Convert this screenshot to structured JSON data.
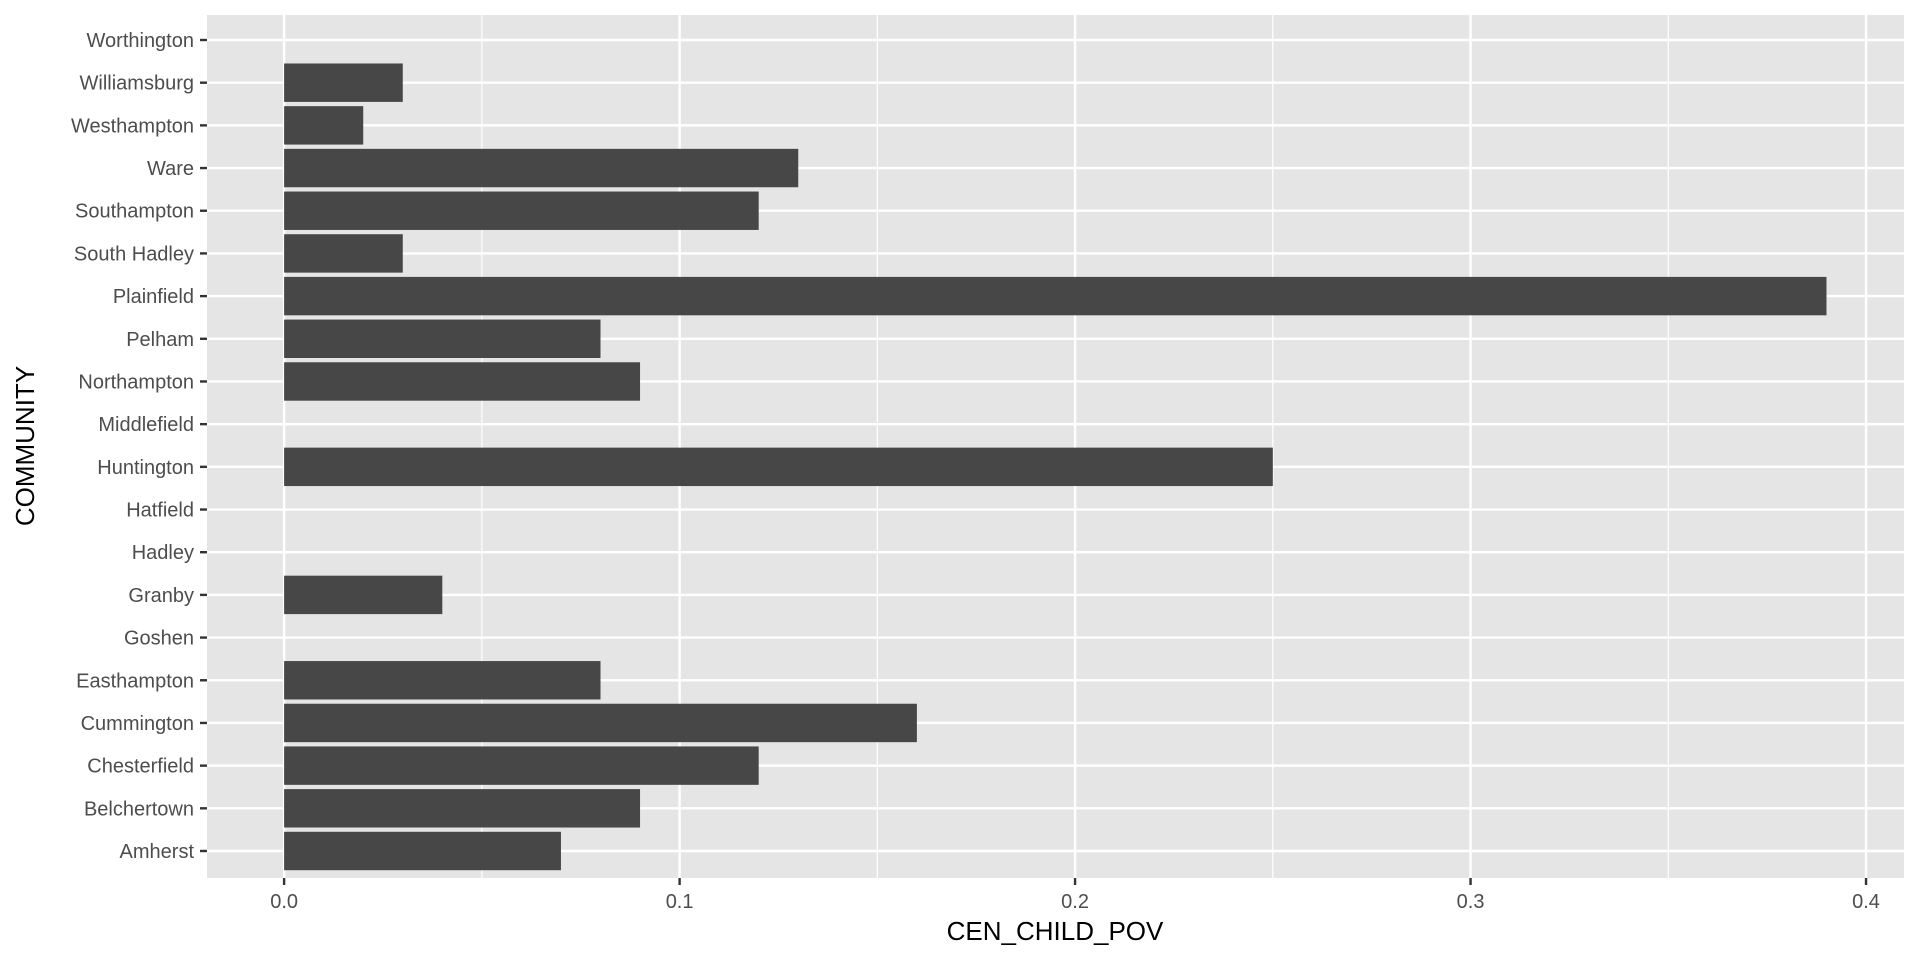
{
  "chart_data": {
    "type": "bar",
    "orientation": "horizontal",
    "xlabel": "CEN_CHILD_POV",
    "ylabel": "COMMUNITY",
    "categories": [
      "Amherst",
      "Belchertown",
      "Chesterfield",
      "Cummington",
      "Easthampton",
      "Goshen",
      "Granby",
      "Hadley",
      "Hatfield",
      "Huntington",
      "Middlefield",
      "Northampton",
      "Pelham",
      "Plainfield",
      "South Hadley",
      "Southampton",
      "Ware",
      "Westhampton",
      "Williamsburg",
      "Worthington"
    ],
    "values": [
      0.07,
      0.09,
      0.12,
      0.16,
      0.08,
      0,
      0.04,
      0,
      0,
      0.25,
      0,
      0.09,
      0.08,
      0.39,
      0.03,
      0.12,
      0.13,
      0.02,
      0.03,
      0
    ],
    "xlim": [
      -0.0195,
      0.4096
    ],
    "xticks": [
      "0.0",
      "0.1",
      "0.2",
      "0.3",
      "0.4"
    ],
    "grid": true,
    "colors": {
      "bar": "#474747",
      "panel": "#e5e5e5",
      "grid": "#ffffff"
    }
  }
}
